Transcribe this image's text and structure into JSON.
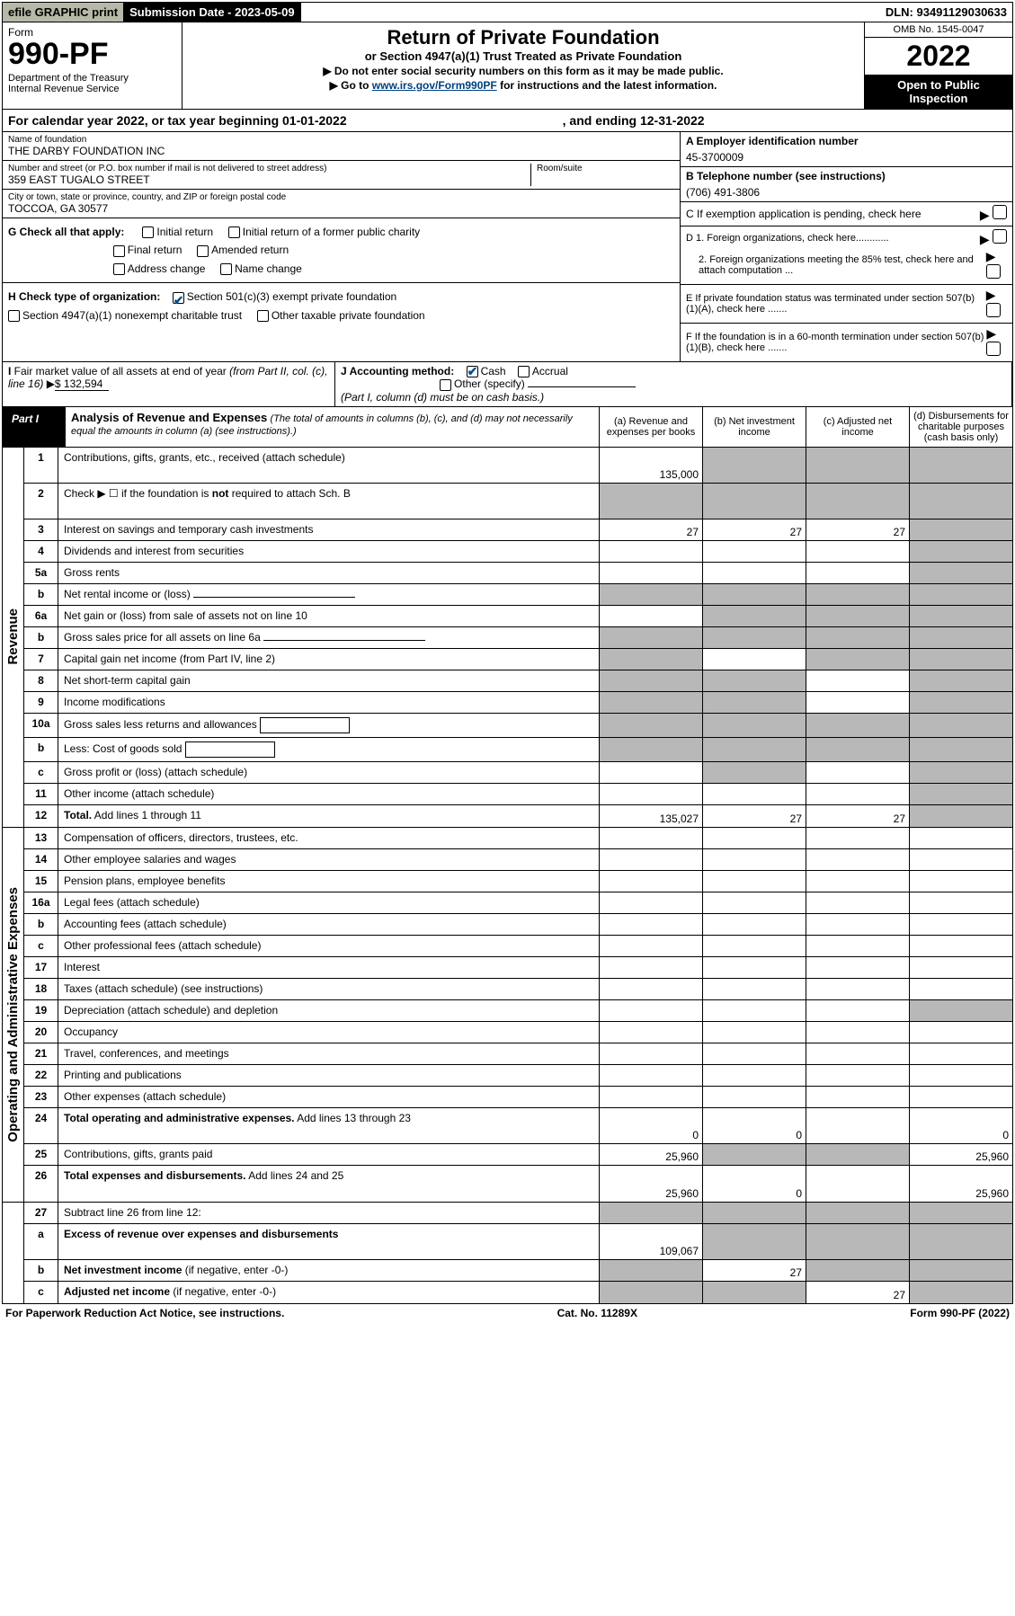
{
  "topbar": {
    "efile": "efile GRAPHIC print",
    "subm_label": "Submission Date - 2023-05-09",
    "dln": "DLN: 93491129030633"
  },
  "header": {
    "form_label": "Form",
    "form_no": "990-PF",
    "dept": "Department of the Treasury\nInternal Revenue Service",
    "title": "Return of Private Foundation",
    "subtitle": "or Section 4947(a)(1) Trust Treated as Private Foundation",
    "instr1": "▶ Do not enter social security numbers on this form as it may be made public.",
    "instr2_pre": "▶ Go to ",
    "instr2_link": "www.irs.gov/Form990PF",
    "instr2_post": " for instructions and the latest information.",
    "omb": "OMB No. 1545-0047",
    "year": "2022",
    "open": "Open to Public Inspection"
  },
  "calyear": {
    "pre": "For calendar year 2022, or tax year beginning 01-01-2022",
    "end": ", and ending 12-31-2022"
  },
  "info": {
    "name_label": "Name of foundation",
    "name": "THE DARBY FOUNDATION INC",
    "addr_label": "Number and street (or P.O. box number if mail is not delivered to street address)",
    "addr": "359 EAST TUGALO STREET",
    "room_label": "Room/suite",
    "city_label": "City or town, state or province, country, and ZIP or foreign postal code",
    "city": "TOCCOA, GA  30577",
    "a_label": "A Employer identification number",
    "a_val": "45-3700009",
    "b_label": "B Telephone number (see instructions)",
    "b_val": "(706) 491-3806",
    "c_label": "C If exemption application is pending, check here",
    "d1": "D 1. Foreign organizations, check here............",
    "d2": "2. Foreign organizations meeting the 85% test, check here and attach computation ...",
    "e_label": "E  If private foundation status was terminated under section 507(b)(1)(A), check here .......",
    "f_label": "F  If the foundation is in a 60-month termination under section 507(b)(1)(B), check here .......",
    "g_label": "G Check all that apply:",
    "g_opts": [
      "Initial return",
      "Initial return of a former public charity",
      "Final return",
      "Amended return",
      "Address change",
      "Name change"
    ],
    "h_label": "H Check type of organization:",
    "h_opts": [
      "Section 501(c)(3) exempt private foundation",
      "Section 4947(a)(1) nonexempt charitable trust",
      "Other taxable private foundation"
    ],
    "i_label": "I Fair market value of all assets at end of year (from Part II, col. (c), line 16) ▶",
    "i_val": "$  132,594",
    "j_label": "J Accounting method:",
    "j_opts": [
      "Cash",
      "Accrual",
      "Other (specify)"
    ],
    "j_note": "(Part I, column (d) must be on cash basis.)"
  },
  "part1": {
    "label": "Part I",
    "title": "Analysis of Revenue and Expenses",
    "note": "(The total of amounts in columns (b), (c), and (d) may not necessarily equal the amounts in column (a) (see instructions).)",
    "cols": {
      "a": "(a)   Revenue and expenses per books",
      "b": "(b)   Net investment income",
      "c": "(c)   Adjusted net income",
      "d": "(d)   Disbursements for charitable purposes (cash basis only)"
    }
  },
  "sections": {
    "revenue": "Revenue",
    "expenses": "Operating and Administrative Expenses"
  },
  "rows": [
    {
      "n": "1",
      "t": "Contributions, gifts, grants, etc., received (attach schedule)",
      "a": "135,000",
      "b": "",
      "c": "",
      "d": "",
      "shade": [
        "b",
        "c",
        "d"
      ],
      "tall": true
    },
    {
      "n": "2",
      "t": "Check ▶ ☐ if the foundation is <b>not</b> required to attach Sch. B",
      "a": "",
      "b": "",
      "c": "",
      "d": "",
      "shade": [
        "a",
        "b",
        "c",
        "d"
      ],
      "tall": true
    },
    {
      "n": "3",
      "t": "Interest on savings and temporary cash investments",
      "a": "27",
      "b": "27",
      "c": "27",
      "d": "",
      "shade": [
        "d"
      ]
    },
    {
      "n": "4",
      "t": "Dividends and interest from securities",
      "a": "",
      "b": "",
      "c": "",
      "d": "",
      "shade": [
        "d"
      ]
    },
    {
      "n": "5a",
      "t": "Gross rents",
      "a": "",
      "b": "",
      "c": "",
      "d": "",
      "shade": [
        "d"
      ]
    },
    {
      "n": "b",
      "t": "Net rental income or (loss)",
      "a": "",
      "b": "",
      "c": "",
      "d": "",
      "shade": [
        "a",
        "b",
        "c",
        "d"
      ],
      "inline": true
    },
    {
      "n": "6a",
      "t": "Net gain or (loss) from sale of assets not on line 10",
      "a": "",
      "b": "",
      "c": "",
      "d": "",
      "shade": [
        "b",
        "c",
        "d"
      ]
    },
    {
      "n": "b",
      "t": "Gross sales price for all assets on line 6a",
      "a": "",
      "b": "",
      "c": "",
      "d": "",
      "shade": [
        "a",
        "b",
        "c",
        "d"
      ],
      "inline": true
    },
    {
      "n": "7",
      "t": "Capital gain net income (from Part IV, line 2)",
      "a": "",
      "b": "",
      "c": "",
      "d": "",
      "shade": [
        "a",
        "c",
        "d"
      ]
    },
    {
      "n": "8",
      "t": "Net short-term capital gain",
      "a": "",
      "b": "",
      "c": "",
      "d": "",
      "shade": [
        "a",
        "b",
        "d"
      ]
    },
    {
      "n": "9",
      "t": "Income modifications",
      "a": "",
      "b": "",
      "c": "",
      "d": "",
      "shade": [
        "a",
        "b",
        "d"
      ]
    },
    {
      "n": "10a",
      "t": "Gross sales less returns and allowances",
      "a": "",
      "b": "",
      "c": "",
      "d": "",
      "shade": [
        "a",
        "b",
        "c",
        "d"
      ],
      "inline2": true
    },
    {
      "n": "b",
      "t": "Less: Cost of goods sold",
      "a": "",
      "b": "",
      "c": "",
      "d": "",
      "shade": [
        "a",
        "b",
        "c",
        "d"
      ],
      "inline2": true
    },
    {
      "n": "c",
      "t": "Gross profit or (loss) (attach schedule)",
      "a": "",
      "b": "",
      "c": "",
      "d": "",
      "shade": [
        "b",
        "d"
      ]
    },
    {
      "n": "11",
      "t": "Other income (attach schedule)",
      "a": "",
      "b": "",
      "c": "",
      "d": "",
      "shade": [
        "d"
      ]
    },
    {
      "n": "12",
      "t": "<b>Total.</b> Add lines 1 through 11",
      "a": "135,027",
      "b": "27",
      "c": "27",
      "d": "",
      "shade": [
        "d"
      ]
    }
  ],
  "exp_rows": [
    {
      "n": "13",
      "t": "Compensation of officers, directors, trustees, etc."
    },
    {
      "n": "14",
      "t": "Other employee salaries and wages"
    },
    {
      "n": "15",
      "t": "Pension plans, employee benefits"
    },
    {
      "n": "16a",
      "t": "Legal fees (attach schedule)"
    },
    {
      "n": "b",
      "t": "Accounting fees (attach schedule)"
    },
    {
      "n": "c",
      "t": "Other professional fees (attach schedule)"
    },
    {
      "n": "17",
      "t": "Interest"
    },
    {
      "n": "18",
      "t": "Taxes (attach schedule) (see instructions)"
    },
    {
      "n": "19",
      "t": "Depreciation (attach schedule) and depletion",
      "shade": [
        "d"
      ]
    },
    {
      "n": "20",
      "t": "Occupancy"
    },
    {
      "n": "21",
      "t": "Travel, conferences, and meetings"
    },
    {
      "n": "22",
      "t": "Printing and publications"
    },
    {
      "n": "23",
      "t": "Other expenses (attach schedule)"
    },
    {
      "n": "24",
      "t": "<b>Total operating and administrative expenses.</b> Add lines 13 through 23",
      "a": "0",
      "b": "0",
      "c": "",
      "d": "0",
      "tall": true
    },
    {
      "n": "25",
      "t": "Contributions, gifts, grants paid",
      "a": "25,960",
      "b": "",
      "c": "",
      "d": "25,960",
      "shade": [
        "b",
        "c"
      ]
    },
    {
      "n": "26",
      "t": "<b>Total expenses and disbursements.</b> Add lines 24 and 25",
      "a": "25,960",
      "b": "0",
      "c": "",
      "d": "25,960",
      "tall": true
    }
  ],
  "net_rows": [
    {
      "n": "27",
      "t": "Subtract line 26 from line 12:",
      "shade": [
        "a",
        "b",
        "c",
        "d"
      ]
    },
    {
      "n": "a",
      "t": "<b>Excess of revenue over expenses and disbursements</b>",
      "a": "109,067",
      "shade": [
        "b",
        "c",
        "d"
      ],
      "tall": true
    },
    {
      "n": "b",
      "t": "<b>Net investment income</b> (if negative, enter -0-)",
      "b": "27",
      "shade": [
        "a",
        "c",
        "d"
      ]
    },
    {
      "n": "c",
      "t": "<b>Adjusted net income</b> (if negative, enter -0-)",
      "c": "27",
      "shade": [
        "a",
        "b",
        "d"
      ]
    }
  ],
  "footer": {
    "left": "For Paperwork Reduction Act Notice, see instructions.",
    "mid": "Cat. No. 11289X",
    "right": "Form 990-PF (2022)"
  },
  "colors": {
    "shade": "#b8b8b8",
    "link": "#004080",
    "check": "#005090",
    "efile_bg": "#b8b8a8"
  }
}
